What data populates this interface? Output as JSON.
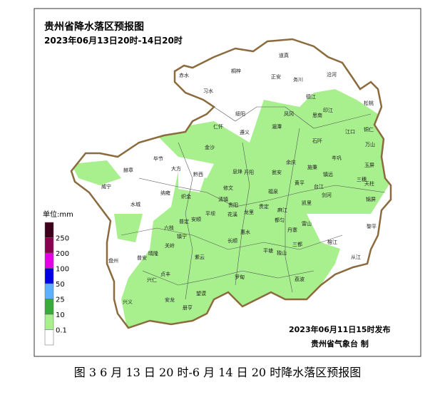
{
  "header": {
    "title": "贵州省降水落区预报图",
    "subtitle": "2023年06月13日20时-14日20时"
  },
  "legend": {
    "title": "单位:mm",
    "levels": [
      250,
      200,
      100,
      50,
      25,
      10,
      0.1
    ],
    "colors": [
      "#3d001c",
      "#8a0050",
      "#e600e6",
      "#0000e6",
      "#5cb0ff",
      "#3aab3a",
      "#a8f08e",
      "#ffffff"
    ]
  },
  "footer": {
    "issued": "2023年06月11日15时发布",
    "issuer": "贵州省气象台 制"
  },
  "caption": "图 3  6 月 13 日 20 时-6 月 14 日 20 时降水落区预报图",
  "county_labels": [
    "道真",
    "沿河",
    "桐梓",
    "正安",
    "务川",
    "赤水",
    "习水",
    "德江",
    "印江",
    "松桃",
    "仁怀",
    "绥阳",
    "凤冈",
    "思南",
    "江口",
    "铜仁",
    "遵义",
    "湄潭",
    "石阡",
    "万山",
    "金沙",
    "毕节",
    "余庆",
    "岑巩",
    "玉屏",
    "大方",
    "黔西",
    "息烽",
    "开阳",
    "瓮安",
    "施秉",
    "镇远",
    "三穗",
    "赫章",
    "威宁",
    "纳雍",
    "织金",
    "修文",
    "黄平",
    "天柱",
    "清镇",
    "贵阳",
    "福泉",
    "凯里",
    "剑河",
    "锦屏",
    "水城",
    "平坝",
    "花溪",
    "龙里",
    "贵定",
    "麻江",
    "台江",
    "雷山",
    "黎平",
    "六枝",
    "普定",
    "安顺",
    "长顺",
    "惠水",
    "都匀",
    "丹寨",
    "榕江",
    "镇宁",
    "紫云",
    "关岭",
    "盘州",
    "晴隆",
    "贞丰",
    "平塘",
    "独山",
    "三都",
    "从江",
    "兴仁",
    "望谟",
    "罗甸",
    "荔波",
    "兴义",
    "安龙",
    "册亨",
    "普安"
  ]
}
